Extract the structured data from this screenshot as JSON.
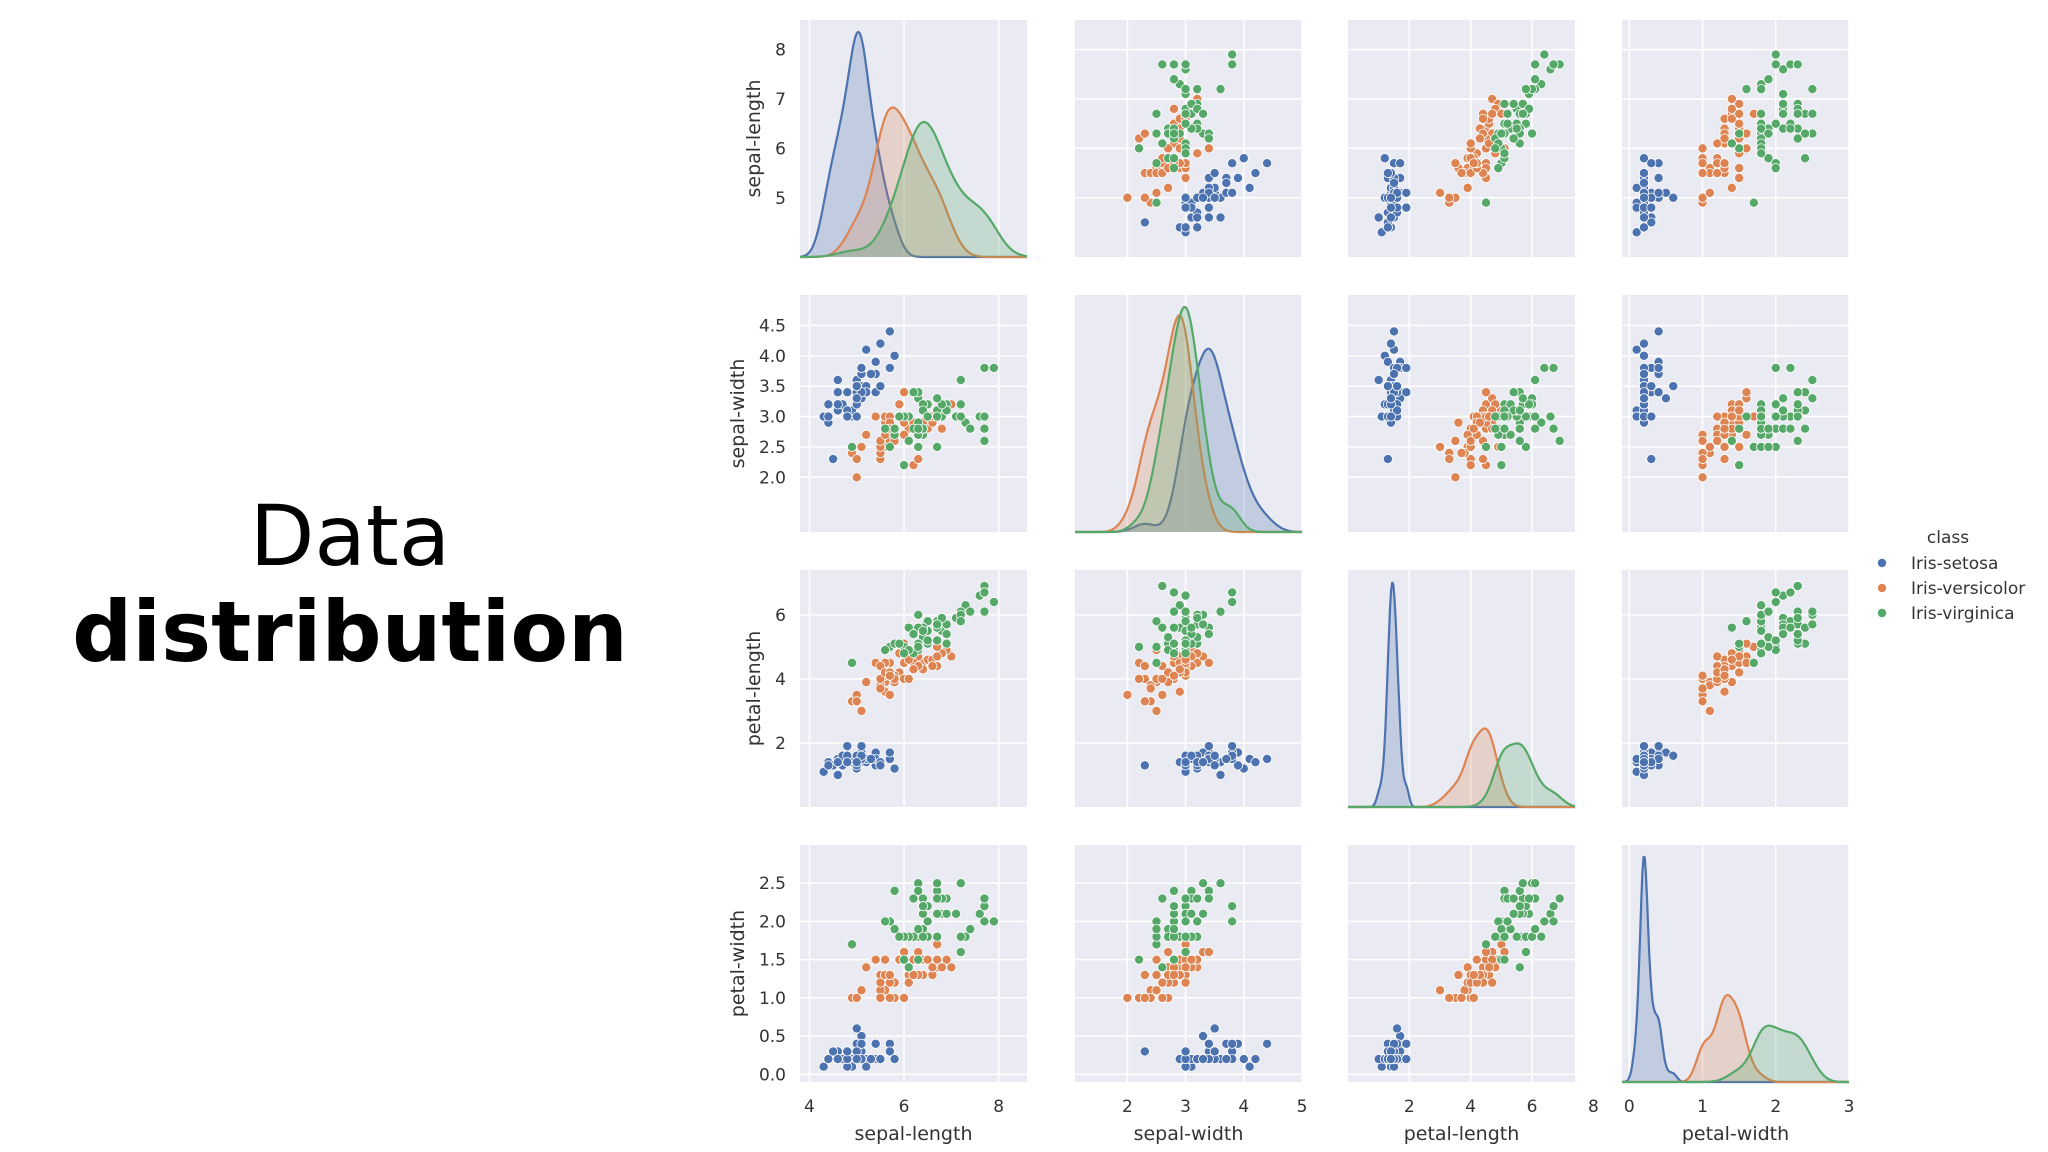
{
  "slide": {
    "title_line1": "Data",
    "title_line2": "distribution"
  },
  "chart_data": {
    "type": "scatter",
    "kind": "pairplot",
    "variables": [
      "sepal-length",
      "sepal-width",
      "petal-length",
      "petal-width"
    ],
    "ranges": {
      "sepal-length": [
        3.8,
        8.6
      ],
      "sepal-width": [
        1.1,
        5.0
      ],
      "petal-length": [
        0.0,
        7.4
      ],
      "petal-width": [
        -0.1,
        3.0
      ]
    },
    "x_ticks": {
      "sepal-length": [
        "4",
        "6",
        "8"
      ],
      "sepal-width": [
        "2",
        "3",
        "4",
        "5"
      ],
      "petal-length": [
        "2",
        "4",
        "6",
        "8"
      ],
      "petal-width": [
        "0",
        "1",
        "2",
        "3"
      ]
    },
    "y_ticks": {
      "sepal-length": [
        "5",
        "6",
        "7",
        "8"
      ],
      "sepal-width": [
        "2.0",
        "2.5",
        "3.0",
        "3.5",
        "4.0",
        "4.5"
      ],
      "petal-length": [
        "2",
        "4",
        "6"
      ],
      "petal-width": [
        "0.0",
        "0.5",
        "1.0",
        "1.5",
        "2.0",
        "2.5"
      ]
    },
    "diagonal": "kde",
    "grid": true,
    "legend": {
      "title": "class",
      "position": "right",
      "entries": [
        "Iris-setosa",
        "Iris-versicolor",
        "Iris-virginica"
      ]
    },
    "series": [
      {
        "name": "Iris-setosa",
        "color": "#4c72b0",
        "points": [
          [
            5.1,
            3.5,
            1.4,
            0.2
          ],
          [
            4.9,
            3.0,
            1.4,
            0.2
          ],
          [
            4.7,
            3.2,
            1.3,
            0.2
          ],
          [
            4.6,
            3.1,
            1.5,
            0.2
          ],
          [
            5.0,
            3.6,
            1.4,
            0.2
          ],
          [
            5.4,
            3.9,
            1.7,
            0.4
          ],
          [
            4.6,
            3.4,
            1.4,
            0.3
          ],
          [
            5.0,
            3.4,
            1.5,
            0.2
          ],
          [
            4.4,
            2.9,
            1.4,
            0.2
          ],
          [
            4.9,
            3.1,
            1.5,
            0.1
          ],
          [
            5.4,
            3.7,
            1.5,
            0.2
          ],
          [
            4.8,
            3.4,
            1.6,
            0.2
          ],
          [
            4.8,
            3.0,
            1.4,
            0.1
          ],
          [
            4.3,
            3.0,
            1.1,
            0.1
          ],
          [
            5.8,
            4.0,
            1.2,
            0.2
          ],
          [
            5.7,
            4.4,
            1.5,
            0.4
          ],
          [
            5.4,
            3.9,
            1.3,
            0.4
          ],
          [
            5.1,
            3.5,
            1.4,
            0.3
          ],
          [
            5.7,
            3.8,
            1.7,
            0.3
          ],
          [
            5.1,
            3.8,
            1.5,
            0.3
          ],
          [
            5.4,
            3.4,
            1.7,
            0.2
          ],
          [
            5.1,
            3.7,
            1.5,
            0.4
          ],
          [
            4.6,
            3.6,
            1.0,
            0.2
          ],
          [
            5.1,
            3.3,
            1.7,
            0.5
          ],
          [
            4.8,
            3.4,
            1.9,
            0.2
          ],
          [
            5.0,
            3.0,
            1.6,
            0.2
          ],
          [
            5.0,
            3.4,
            1.6,
            0.4
          ],
          [
            5.2,
            3.5,
            1.5,
            0.2
          ],
          [
            5.2,
            3.4,
            1.4,
            0.2
          ],
          [
            4.7,
            3.2,
            1.6,
            0.2
          ],
          [
            4.8,
            3.1,
            1.6,
            0.2
          ],
          [
            5.4,
            3.4,
            1.5,
            0.4
          ],
          [
            5.2,
            4.1,
            1.5,
            0.1
          ],
          [
            5.5,
            4.2,
            1.4,
            0.2
          ],
          [
            5.0,
            3.2,
            1.2,
            0.2
          ],
          [
            5.5,
            3.5,
            1.3,
            0.2
          ],
          [
            4.4,
            3.0,
            1.3,
            0.2
          ],
          [
            5.1,
            3.4,
            1.5,
            0.2
          ],
          [
            5.0,
            3.5,
            1.3,
            0.3
          ],
          [
            4.5,
            2.3,
            1.3,
            0.3
          ],
          [
            4.4,
            3.2,
            1.3,
            0.2
          ],
          [
            5.0,
            3.5,
            1.6,
            0.6
          ],
          [
            5.1,
            3.8,
            1.9,
            0.4
          ],
          [
            4.8,
            3.0,
            1.4,
            0.3
          ],
          [
            5.1,
            3.8,
            1.6,
            0.2
          ],
          [
            4.6,
            3.2,
            1.4,
            0.2
          ],
          [
            5.3,
            3.7,
            1.5,
            0.2
          ],
          [
            5.0,
            3.3,
            1.4,
            0.2
          ]
        ]
      },
      {
        "name": "Iris-versicolor",
        "color": "#dd8452",
        "points": [
          [
            7.0,
            3.2,
            4.7,
            1.4
          ],
          [
            6.4,
            3.2,
            4.5,
            1.5
          ],
          [
            6.9,
            3.1,
            4.9,
            1.5
          ],
          [
            5.5,
            2.3,
            4.0,
            1.3
          ],
          [
            6.5,
            2.8,
            4.6,
            1.5
          ],
          [
            5.7,
            2.8,
            4.5,
            1.3
          ],
          [
            6.3,
            3.3,
            4.7,
            1.6
          ],
          [
            4.9,
            2.4,
            3.3,
            1.0
          ],
          [
            6.6,
            2.9,
            4.6,
            1.3
          ],
          [
            5.2,
            2.7,
            3.9,
            1.4
          ],
          [
            5.0,
            2.0,
            3.5,
            1.0
          ],
          [
            5.9,
            3.0,
            4.2,
            1.5
          ],
          [
            6.0,
            2.2,
            4.0,
            1.0
          ],
          [
            6.1,
            2.9,
            4.7,
            1.4
          ],
          [
            5.6,
            2.9,
            3.6,
            1.3
          ],
          [
            6.7,
            3.1,
            4.4,
            1.4
          ],
          [
            5.6,
            3.0,
            4.5,
            1.5
          ],
          [
            5.8,
            2.7,
            4.1,
            1.0
          ],
          [
            6.2,
            2.2,
            4.5,
            1.5
          ],
          [
            5.6,
            2.5,
            3.9,
            1.1
          ],
          [
            5.9,
            3.2,
            4.8,
            1.8
          ],
          [
            6.1,
            2.8,
            4.0,
            1.3
          ],
          [
            6.3,
            2.5,
            4.9,
            1.5
          ],
          [
            6.1,
            2.8,
            4.7,
            1.2
          ],
          [
            6.4,
            2.9,
            4.3,
            1.3
          ],
          [
            6.6,
            3.0,
            4.4,
            1.4
          ],
          [
            6.8,
            2.8,
            4.8,
            1.4
          ],
          [
            6.7,
            3.0,
            5.0,
            1.7
          ],
          [
            6.0,
            2.9,
            4.5,
            1.5
          ],
          [
            5.7,
            2.6,
            3.5,
            1.0
          ],
          [
            5.5,
            2.4,
            3.8,
            1.1
          ],
          [
            5.5,
            2.4,
            3.7,
            1.0
          ],
          [
            5.8,
            2.7,
            3.9,
            1.2
          ],
          [
            6.0,
            2.7,
            5.1,
            1.6
          ],
          [
            5.4,
            3.0,
            4.5,
            1.5
          ],
          [
            6.0,
            3.4,
            4.5,
            1.6
          ],
          [
            6.7,
            3.1,
            4.7,
            1.5
          ],
          [
            6.3,
            2.3,
            4.4,
            1.3
          ],
          [
            5.6,
            3.0,
            4.1,
            1.3
          ],
          [
            5.5,
            2.5,
            4.0,
            1.3
          ],
          [
            5.5,
            2.6,
            4.4,
            1.2
          ],
          [
            6.1,
            3.0,
            4.6,
            1.4
          ],
          [
            5.8,
            2.6,
            4.0,
            1.2
          ],
          [
            5.0,
            2.3,
            3.3,
            1.0
          ],
          [
            5.6,
            2.7,
            4.2,
            1.3
          ],
          [
            5.7,
            3.0,
            4.2,
            1.2
          ],
          [
            5.7,
            2.9,
            4.2,
            1.3
          ],
          [
            6.2,
            2.9,
            4.3,
            1.3
          ],
          [
            5.1,
            2.5,
            3.0,
            1.1
          ],
          [
            5.7,
            2.8,
            4.1,
            1.3
          ]
        ]
      },
      {
        "name": "Iris-virginica",
        "color": "#55a868",
        "points": [
          [
            6.3,
            3.3,
            6.0,
            2.5
          ],
          [
            5.8,
            2.7,
            5.1,
            1.9
          ],
          [
            7.1,
            3.0,
            5.9,
            2.1
          ],
          [
            6.3,
            2.9,
            5.6,
            1.8
          ],
          [
            6.5,
            3.0,
            5.8,
            2.2
          ],
          [
            7.6,
            3.0,
            6.6,
            2.1
          ],
          [
            4.9,
            2.5,
            4.5,
            1.7
          ],
          [
            7.3,
            2.9,
            6.3,
            1.8
          ],
          [
            6.7,
            2.5,
            5.8,
            1.8
          ],
          [
            7.2,
            3.6,
            6.1,
            2.5
          ],
          [
            6.5,
            3.2,
            5.1,
            2.0
          ],
          [
            6.4,
            2.7,
            5.3,
            1.9
          ],
          [
            6.8,
            3.0,
            5.5,
            2.1
          ],
          [
            5.7,
            2.5,
            5.0,
            2.0
          ],
          [
            5.8,
            2.8,
            5.1,
            2.4
          ],
          [
            6.4,
            3.2,
            5.3,
            2.3
          ],
          [
            6.5,
            3.0,
            5.5,
            1.8
          ],
          [
            7.7,
            3.8,
            6.7,
            2.2
          ],
          [
            7.7,
            2.6,
            6.9,
            2.3
          ],
          [
            6.0,
            2.2,
            5.0,
            1.5
          ],
          [
            6.9,
            3.2,
            5.7,
            2.3
          ],
          [
            5.6,
            2.8,
            4.9,
            2.0
          ],
          [
            7.7,
            2.8,
            6.7,
            2.0
          ],
          [
            6.3,
            2.7,
            4.9,
            1.8
          ],
          [
            6.7,
            3.3,
            5.7,
            2.1
          ],
          [
            7.2,
            3.2,
            6.0,
            1.8
          ],
          [
            6.2,
            2.8,
            4.8,
            1.8
          ],
          [
            6.1,
            3.0,
            4.9,
            1.8
          ],
          [
            6.4,
            2.8,
            5.6,
            2.1
          ],
          [
            7.2,
            3.0,
            5.8,
            1.6
          ],
          [
            7.4,
            2.8,
            6.1,
            1.9
          ],
          [
            7.9,
            3.8,
            6.4,
            2.0
          ],
          [
            6.4,
            2.8,
            5.6,
            2.2
          ],
          [
            6.3,
            2.8,
            5.1,
            1.5
          ],
          [
            6.1,
            2.6,
            5.6,
            1.4
          ],
          [
            7.7,
            3.0,
            6.1,
            2.3
          ],
          [
            6.3,
            3.4,
            5.6,
            2.4
          ],
          [
            6.4,
            3.1,
            5.5,
            1.8
          ],
          [
            6.0,
            3.0,
            4.8,
            1.8
          ],
          [
            6.9,
            3.1,
            5.4,
            2.1
          ],
          [
            6.7,
            3.1,
            5.6,
            2.4
          ],
          [
            6.9,
            3.1,
            5.1,
            2.3
          ],
          [
            6.8,
            3.2,
            5.9,
            2.3
          ],
          [
            6.7,
            3.3,
            5.7,
            2.5
          ],
          [
            6.7,
            3.0,
            5.2,
            2.3
          ],
          [
            6.3,
            2.5,
            5.0,
            1.9
          ],
          [
            6.5,
            3.0,
            5.2,
            2.0
          ],
          [
            6.2,
            3.4,
            5.4,
            2.3
          ],
          [
            5.9,
            3.0,
            5.1,
            1.8
          ]
        ]
      }
    ]
  }
}
